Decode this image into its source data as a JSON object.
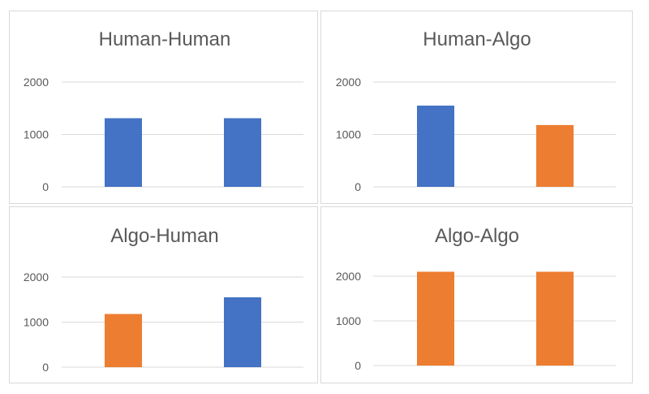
{
  "colors": {
    "human": "#4472c4",
    "algo": "#ed7d31"
  },
  "chart_data": [
    {
      "type": "bar",
      "title": "Human-Human",
      "categories": [
        "",
        ""
      ],
      "values": [
        1310,
        1310
      ],
      "bar_colors": [
        "#4472c4",
        "#4472c4"
      ],
      "yticks": [
        "0",
        "1000",
        "2000"
      ],
      "ylim": [
        0,
        2000
      ],
      "grid": true
    },
    {
      "type": "bar",
      "title": "Human-Algo",
      "categories": [
        "",
        ""
      ],
      "values": [
        1550,
        1180
      ],
      "bar_colors": [
        "#4472c4",
        "#ed7d31"
      ],
      "yticks": [
        "0",
        "1000",
        "2000"
      ],
      "ylim": [
        0,
        2000
      ],
      "grid": true
    },
    {
      "type": "bar",
      "title": "Algo-Human",
      "categories": [
        "",
        ""
      ],
      "values": [
        1180,
        1550
      ],
      "bar_colors": [
        "#ed7d31",
        "#4472c4"
      ],
      "yticks": [
        "0",
        "1000",
        "2000"
      ],
      "ylim": [
        0,
        2000
      ],
      "grid": true
    },
    {
      "type": "bar",
      "title": "Algo-Algo",
      "categories": [
        "",
        ""
      ],
      "values": [
        2100,
        2100
      ],
      "bar_colors": [
        "#ed7d31",
        "#ed7d31"
      ],
      "yticks": [
        "0",
        "1000",
        "2000"
      ],
      "ylim": [
        0,
        2000
      ],
      "grid": true
    }
  ]
}
